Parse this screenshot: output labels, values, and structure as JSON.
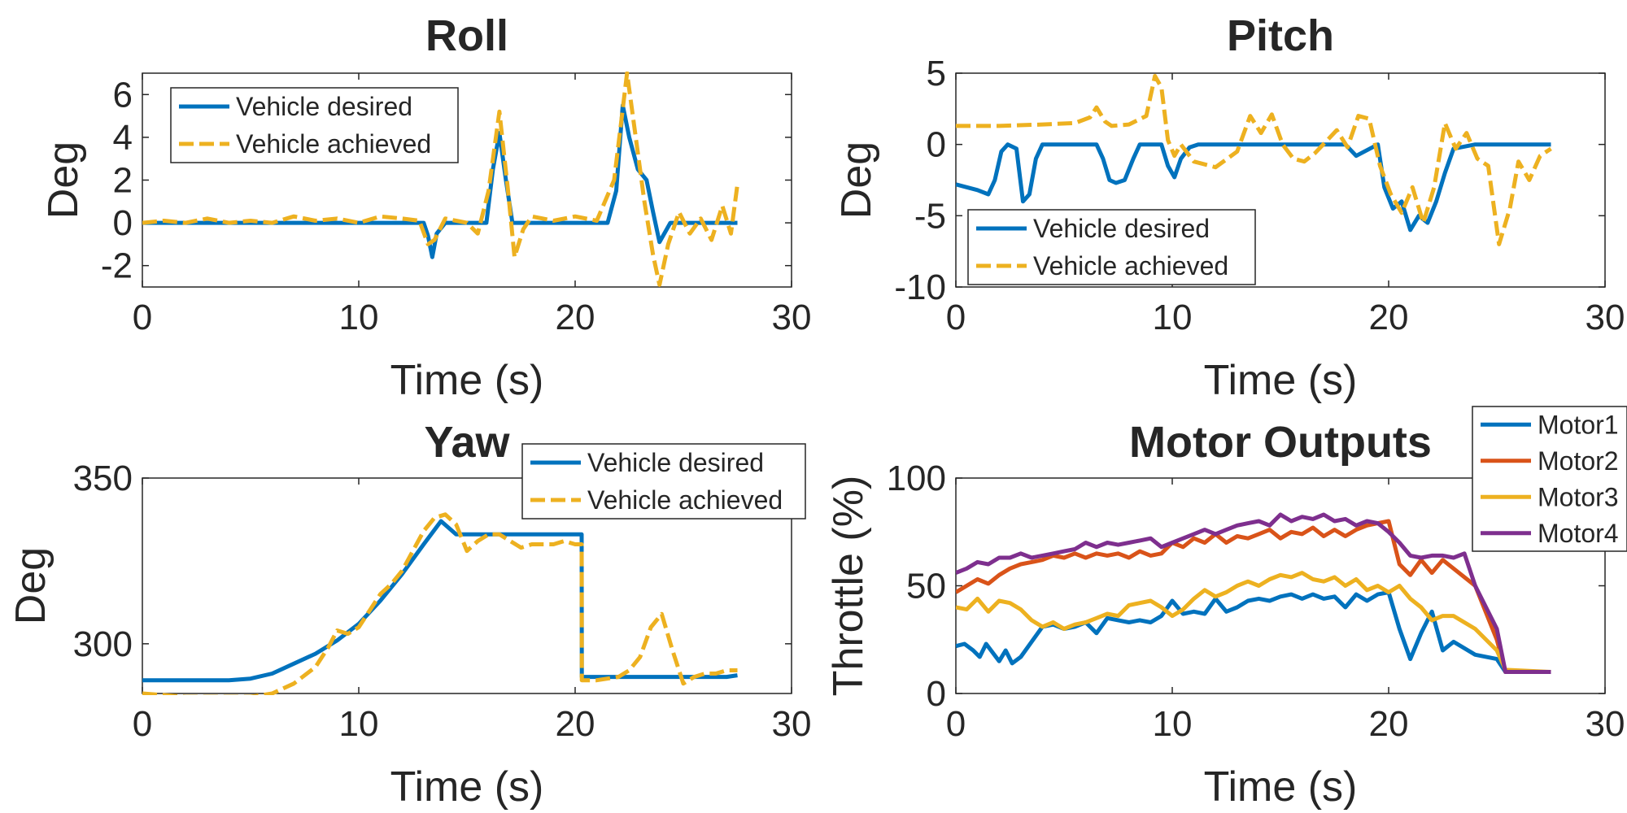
{
  "colors": {
    "desired": "#0072BD",
    "achieved": "#EDB120",
    "motor1": "#0072BD",
    "motor2": "#D95319",
    "motor3": "#EDB120",
    "motor4": "#7E2F8E"
  },
  "chart_data": [
    {
      "id": "roll",
      "type": "line",
      "title": "Roll",
      "xlabel": "Time (s)",
      "ylabel": "Deg",
      "xlim": [
        0,
        30
      ],
      "ylim": [
        -3,
        7
      ],
      "xticks": [
        "0",
        "10",
        "20",
        "30"
      ],
      "yticks": [
        "-2",
        "0",
        "2",
        "4",
        "6"
      ],
      "ytick_values": [
        -2,
        0,
        2,
        4,
        6
      ],
      "xtick_values": [
        0,
        10,
        20,
        30
      ],
      "grid": false,
      "legend_position": "top-left",
      "series": [
        {
          "name": "Vehicle desired",
          "style": "solid",
          "x": [
            0,
            5,
            10,
            13,
            13.2,
            13.4,
            13.6,
            14,
            15.9,
            16.2,
            16.5,
            16.8,
            17.1,
            17.5,
            19,
            21.5,
            21.9,
            22.2,
            22.5,
            22.9,
            23.3,
            23.6,
            23.9,
            24.4,
            25,
            27.5
          ],
          "y": [
            0,
            0,
            0,
            0,
            -0.6,
            -1.6,
            -0.5,
            0,
            0,
            2.5,
            4.2,
            2.0,
            0,
            0,
            0,
            0,
            1.5,
            5.5,
            4.0,
            2.5,
            2.0,
            0.5,
            -0.9,
            0,
            0,
            0
          ]
        },
        {
          "name": "Vehicle achieved",
          "style": "dashed",
          "x": [
            0,
            1,
            2,
            3,
            4,
            5,
            6,
            7,
            8,
            9,
            10,
            11,
            12,
            12.8,
            13.2,
            13.5,
            14,
            14.5,
            15,
            15.5,
            16,
            16.5,
            16.9,
            17.2,
            17.6,
            18,
            18.5,
            19,
            20,
            21,
            21.8,
            22.1,
            22.4,
            22.8,
            23.2,
            23.6,
            23.9,
            24.3,
            24.8,
            25.3,
            25.8,
            26.3,
            26.8,
            27.2,
            27.5
          ],
          "y": [
            0,
            0.1,
            0,
            0.2,
            0,
            0.1,
            0,
            0.3,
            0.1,
            0.2,
            0,
            0.3,
            0.2,
            0.1,
            -1.0,
            -0.8,
            0.2,
            0.1,
            0,
            -0.5,
            1.5,
            5.2,
            1.5,
            -1.6,
            -0.3,
            0.3,
            0.2,
            0.1,
            0.3,
            0.1,
            2.0,
            4.5,
            7.0,
            4.0,
            1.0,
            -1.5,
            -2.9,
            -1.0,
            0.5,
            -0.5,
            0.2,
            -0.8,
            0.8,
            -0.5,
            1.8
          ]
        }
      ]
    },
    {
      "id": "pitch",
      "type": "line",
      "title": "Pitch",
      "xlabel": "Time (s)",
      "ylabel": "Deg",
      "xlim": [
        0,
        30
      ],
      "ylim": [
        -10,
        5
      ],
      "xticks": [
        "0",
        "10",
        "20",
        "30"
      ],
      "yticks": [
        "-10",
        "-5",
        "0",
        "5"
      ],
      "ytick_values": [
        -10,
        -5,
        0,
        5
      ],
      "xtick_values": [
        0,
        10,
        20,
        30
      ],
      "grid": false,
      "legend_position": "bottom-left",
      "series": [
        {
          "name": "Vehicle desired",
          "style": "solid",
          "x": [
            0,
            0.5,
            1,
            1.5,
            1.8,
            2.1,
            2.4,
            2.8,
            3.1,
            3.4,
            3.7,
            4,
            6.5,
            6.8,
            7.1,
            7.4,
            7.8,
            8.2,
            8.5,
            9.5,
            9.8,
            10.1,
            10.4,
            10.8,
            11.2,
            18,
            18.5,
            19.5,
            19.8,
            20.2,
            20.6,
            21,
            21.4,
            21.8,
            22.2,
            22.6,
            23,
            24,
            27.5
          ],
          "y": [
            -2.8,
            -3.0,
            -3.2,
            -3.5,
            -2.5,
            -0.5,
            0,
            -0.3,
            -4.0,
            -3.5,
            -1.0,
            0,
            0,
            -1.0,
            -2.5,
            -2.7,
            -2.5,
            -1.0,
            0,
            0,
            -1.5,
            -2.3,
            -1.0,
            -0.2,
            0,
            0,
            -0.8,
            0,
            -3.0,
            -4.5,
            -4.0,
            -6.0,
            -5.0,
            -5.5,
            -4.0,
            -2.0,
            -0.3,
            0,
            0
          ]
        },
        {
          "name": "Vehicle achieved",
          "style": "dashed",
          "x": [
            0,
            2,
            4,
            5.5,
            6.2,
            6.5,
            6.9,
            7.2,
            8,
            8.8,
            9.2,
            9.5,
            9.8,
            10.1,
            10.4,
            11,
            12,
            13,
            13.6,
            14.1,
            14.6,
            15.1,
            15.6,
            16.1,
            16.6,
            17.1,
            17.6,
            18.1,
            18.6,
            19.1,
            19.6,
            20.1,
            20.6,
            21.1,
            21.6,
            22.1,
            22.6,
            23.1,
            23.6,
            24.1,
            24.6,
            25.1,
            25.6,
            26,
            26.5,
            27,
            27.5
          ],
          "y": [
            1.3,
            1.3,
            1.4,
            1.5,
            1.9,
            2.6,
            1.6,
            1.3,
            1.4,
            2.0,
            4.8,
            4.0,
            0.3,
            -0.8,
            0,
            -1.2,
            -1.6,
            -0.5,
            2.0,
            0.8,
            2.1,
            0,
            -1.0,
            -1.2,
            -0.6,
            0.2,
            1.0,
            -0.2,
            2.0,
            1.8,
            -1.5,
            -3.5,
            -4.8,
            -3.0,
            -5.5,
            -3.0,
            1.5,
            -0.3,
            0.8,
            -1.0,
            -1.5,
            -7.0,
            -4.5,
            -1.2,
            -2.5,
            -0.8,
            -0.3
          ]
        }
      ]
    },
    {
      "id": "yaw",
      "type": "line",
      "title": "Yaw",
      "xlabel": "Time (s)",
      "ylabel": "Deg",
      "xlim": [
        0,
        30
      ],
      "ylim": [
        285,
        350
      ],
      "xticks": [
        "0",
        "10",
        "20",
        "30"
      ],
      "yticks": [
        "300",
        "350"
      ],
      "ytick_values": [
        300,
        350
      ],
      "xtick_values": [
        0,
        10,
        20,
        30
      ],
      "grid": false,
      "legend_position": "top-right",
      "series": [
        {
          "name": "Vehicle desired",
          "style": "solid",
          "x": [
            0,
            2,
            4,
            5,
            6,
            7,
            8,
            9,
            10,
            11,
            12,
            13,
            13.8,
            14.5,
            15,
            17,
            19,
            20.3,
            20.31,
            22,
            25,
            27,
            27.5
          ],
          "y": [
            289,
            289,
            289,
            289.5,
            291,
            294,
            297,
            301,
            306,
            313,
            321,
            330,
            337,
            333,
            333,
            333,
            333,
            333,
            290,
            290,
            290,
            290,
            290.5
          ]
        },
        {
          "name": "Vehicle achieved",
          "style": "dashed",
          "x": [
            0,
            1,
            2,
            3,
            4,
            5,
            6,
            7,
            8,
            8.6,
            9,
            9.5,
            10,
            10.5,
            11,
            11.5,
            12,
            12.5,
            13,
            13.5,
            14,
            14.5,
            15,
            15.5,
            16,
            16.5,
            17,
            17.5,
            18,
            18.5,
            19,
            19.5,
            20,
            20.3,
            20.31,
            21,
            22,
            22.5,
            23,
            23.5,
            24,
            24.5,
            25,
            25.5,
            26,
            26.5,
            27,
            27.5
          ],
          "y": [
            285,
            284.5,
            284,
            284,
            284,
            284,
            285,
            288,
            293,
            299,
            304,
            303,
            305,
            310,
            315,
            318,
            322,
            328,
            334,
            338,
            339,
            336,
            328,
            331,
            333,
            333,
            331,
            329,
            330,
            330,
            330,
            331,
            330,
            330,
            289,
            289,
            290,
            292,
            296,
            305,
            309,
            298,
            288,
            290,
            291,
            291,
            292,
            292
          ]
        }
      ]
    },
    {
      "id": "motors",
      "type": "line",
      "title": "Motor Outputs",
      "xlabel": "Time (s)",
      "ylabel": "Throttle (%)",
      "xlim": [
        0,
        30
      ],
      "ylim": [
        0,
        100
      ],
      "xticks": [
        "0",
        "10",
        "20",
        "30"
      ],
      "yticks": [
        "0",
        "50",
        "100"
      ],
      "ytick_values": [
        0,
        50,
        100
      ],
      "xtick_values": [
        0,
        10,
        20,
        30
      ],
      "grid": false,
      "legend_position": "outside-top-right",
      "series": [
        {
          "name": "Motor1",
          "style": "solid",
          "x": [
            0,
            0.4,
            0.8,
            1.1,
            1.4,
            1.7,
            2.0,
            2.3,
            2.6,
            3.0,
            3.5,
            4,
            4.5,
            5,
            5.5,
            6,
            6.5,
            7,
            7.5,
            8,
            8.5,
            9,
            9.5,
            10,
            10.5,
            11,
            11.5,
            12,
            12.5,
            13,
            13.5,
            14,
            14.5,
            15,
            15.5,
            16,
            16.5,
            17,
            17.5,
            18,
            18.5,
            19,
            19.5,
            20,
            20.5,
            21,
            21.5,
            22,
            22.5,
            23,
            24,
            25,
            25.4,
            27.5
          ],
          "y": [
            22,
            23,
            20,
            17,
            23,
            19,
            15,
            20,
            14,
            17,
            24,
            31,
            32,
            30,
            31,
            33,
            28,
            35,
            34,
            33,
            34,
            33,
            36,
            43,
            37,
            38,
            37,
            44,
            38,
            40,
            43,
            44,
            43,
            45,
            46,
            44,
            46,
            44,
            45,
            40,
            46,
            43,
            46,
            47,
            30,
            16,
            28,
            38,
            20,
            24,
            18,
            16,
            10,
            10
          ]
        },
        {
          "name": "Motor2",
          "style": "solid",
          "x": [
            0,
            0.5,
            1,
            1.5,
            2,
            2.5,
            3,
            3.5,
            4,
            4.5,
            5,
            5.5,
            6,
            6.5,
            7,
            7.5,
            8,
            8.5,
            9,
            9.5,
            10,
            10.5,
            11,
            11.5,
            12,
            12.5,
            13,
            13.5,
            14,
            14.5,
            15,
            15.5,
            16,
            16.5,
            17,
            17.5,
            18,
            18.5,
            19,
            19.5,
            20,
            20.5,
            21,
            21.5,
            22,
            22.5,
            23,
            24,
            25,
            25.4,
            27.5
          ],
          "y": [
            47,
            50,
            53,
            51,
            55,
            58,
            60,
            61,
            62,
            64,
            63,
            65,
            63,
            65,
            64,
            65,
            63,
            66,
            64,
            65,
            70,
            68,
            72,
            70,
            74,
            70,
            73,
            72,
            74,
            76,
            72,
            75,
            74,
            77,
            73,
            76,
            73,
            76,
            78,
            79,
            80,
            60,
            55,
            62,
            56,
            62,
            58,
            50,
            25,
            10,
            10
          ]
        },
        {
          "name": "Motor3",
          "style": "solid",
          "x": [
            0,
            0.5,
            1,
            1.5,
            2,
            2.5,
            3,
            3.5,
            4,
            4.5,
            5,
            5.5,
            6,
            6.5,
            7,
            7.5,
            8,
            8.5,
            9,
            9.5,
            10,
            10.5,
            11,
            11.5,
            12,
            12.5,
            13,
            13.5,
            14,
            14.5,
            15,
            15.5,
            16,
            16.5,
            17,
            17.5,
            18,
            18.5,
            19,
            19.5,
            20,
            20.5,
            21,
            21.5,
            22,
            22.5,
            23,
            24,
            25,
            25.4,
            27.5
          ],
          "y": [
            40,
            39,
            44,
            38,
            43,
            42,
            39,
            34,
            31,
            33,
            30,
            32,
            33,
            35,
            37,
            36,
            41,
            42,
            43,
            40,
            36,
            39,
            44,
            48,
            45,
            47,
            50,
            52,
            50,
            53,
            55,
            54,
            56,
            53,
            52,
            54,
            50,
            53,
            48,
            50,
            47,
            50,
            44,
            40,
            34,
            36,
            36,
            30,
            20,
            11,
            10
          ]
        },
        {
          "name": "Motor4",
          "style": "solid",
          "x": [
            0,
            0.5,
            1,
            1.5,
            2,
            2.5,
            3,
            3.5,
            4,
            4.5,
            5,
            5.5,
            6,
            6.5,
            7,
            7.5,
            8,
            8.5,
            9,
            9.5,
            10,
            10.5,
            11,
            11.5,
            12,
            12.5,
            13,
            13.5,
            14,
            14.5,
            15,
            15.5,
            16,
            16.5,
            17,
            17.5,
            18,
            18.5,
            19,
            19.5,
            20,
            20.5,
            21,
            21.5,
            22,
            22.5,
            23,
            23.5,
            24,
            25,
            25.4,
            27.5
          ],
          "y": [
            56,
            58,
            61,
            60,
            63,
            63,
            65,
            63,
            64,
            65,
            66,
            67,
            70,
            68,
            70,
            69,
            70,
            71,
            72,
            68,
            70,
            72,
            74,
            76,
            74,
            76,
            78,
            79,
            80,
            78,
            83,
            80,
            82,
            81,
            83,
            80,
            81,
            78,
            80,
            79,
            75,
            70,
            64,
            63,
            64,
            64,
            63,
            65,
            50,
            30,
            10,
            10
          ]
        }
      ]
    }
  ]
}
